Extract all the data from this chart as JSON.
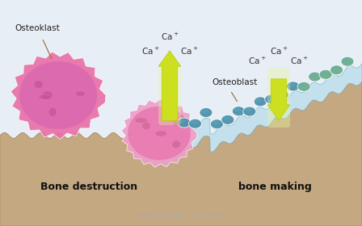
{
  "bg_color": "#e8eef5",
  "bone_color": "#c4a882",
  "bone_edge_color": "#b89068",
  "osteoclast1_color": "#e870a8",
  "osteoclast1_inner": "#d060a0",
  "osteoclast2_color": "#e890b8",
  "osteoclast2_inner": "#e070a8",
  "vesicle_color": "#c85090",
  "osteoblast_color": "#4a8fa8",
  "osteoblast_highlight": "#5aafcc",
  "new_bone_color": "#b8dcea",
  "new_bone_edge": "#7ab8cc",
  "osteoblast_green": "#6aaa88",
  "arrow_color": "#cce020",
  "arrow_outline": "#b8cc10",
  "glow_color": "#e8f4a0",
  "text_dark": "#222222",
  "text_bold": "#111111",
  "watermark_color": "#aaaaaa",
  "text_label_left": "Osteoklast",
  "text_label_right": "Osteoblast",
  "text_bottom_left": "Bone destruction",
  "text_bottom_right": "bone making",
  "watermark": "shutterstock.com · 2335208481"
}
